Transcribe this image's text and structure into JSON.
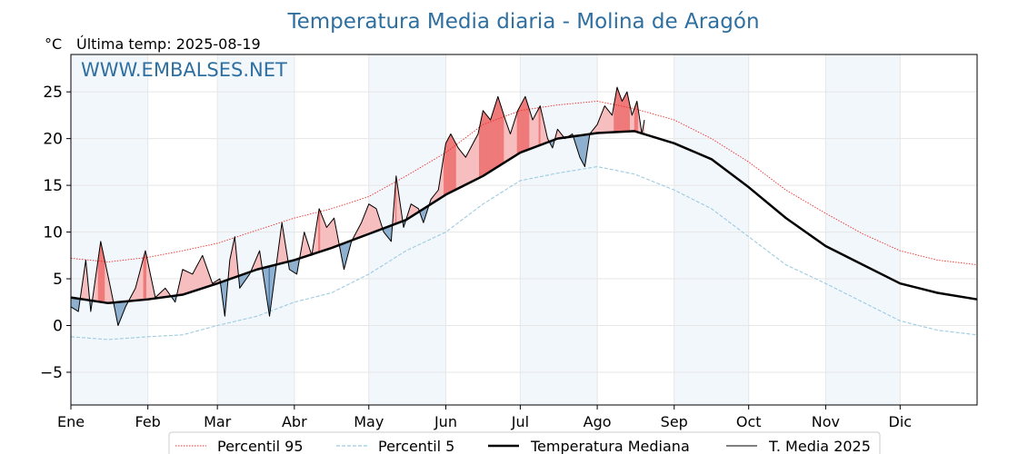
{
  "chart_data": {
    "type": "line",
    "title": "Temperatura Media diaria - Molina de Aragón",
    "unit_label": "°C",
    "last_temp_label": "Última temp: 2025-08-19",
    "watermark": "WWW.EMBALSES.NET",
    "ylim": [
      -8.5,
      29.0
    ],
    "yticks": [
      -5,
      0,
      5,
      10,
      15,
      20,
      25
    ],
    "ytick_labels": [
      "−5",
      "0",
      "5",
      "10",
      "15",
      "20",
      "25"
    ],
    "x_day_range": [
      0,
      365
    ],
    "months": [
      {
        "label": "Ene",
        "day": 0
      },
      {
        "label": "Feb",
        "day": 31
      },
      {
        "label": "Mar",
        "day": 59
      },
      {
        "label": "Abr",
        "day": 90
      },
      {
        "label": "May",
        "day": 120
      },
      {
        "label": "Jun",
        "day": 151
      },
      {
        "label": "Jul",
        "day": 181
      },
      {
        "label": "Ago",
        "day": 212
      },
      {
        "label": "Sep",
        "day": 243
      },
      {
        "label": "Oct",
        "day": 273
      },
      {
        "label": "Nov",
        "day": 304
      },
      {
        "label": "Dic",
        "day": 334
      }
    ],
    "grid": true,
    "legend_position": "bottom",
    "series": [
      {
        "name": "Percentil 95",
        "color": "#e8302a",
        "style": "dotted",
        "points": [
          [
            0,
            7.2
          ],
          [
            15,
            6.8
          ],
          [
            31,
            7.3
          ],
          [
            45,
            8.0
          ],
          [
            59,
            8.8
          ],
          [
            75,
            10.2
          ],
          [
            90,
            11.5
          ],
          [
            105,
            12.5
          ],
          [
            120,
            13.8
          ],
          [
            135,
            16.0
          ],
          [
            151,
            18.5
          ],
          [
            166,
            21.5
          ],
          [
            181,
            23.0
          ],
          [
            196,
            23.6
          ],
          [
            212,
            24.0
          ],
          [
            227,
            23.2
          ],
          [
            243,
            22.0
          ],
          [
            258,
            20.0
          ],
          [
            273,
            17.5
          ],
          [
            288,
            14.5
          ],
          [
            304,
            12.0
          ],
          [
            319,
            9.8
          ],
          [
            334,
            8.0
          ],
          [
            349,
            7.0
          ],
          [
            365,
            6.5
          ]
        ]
      },
      {
        "name": "Percentil 5",
        "color": "#9ccbe0",
        "style": "dashed",
        "points": [
          [
            0,
            -1.2
          ],
          [
            15,
            -1.5
          ],
          [
            31,
            -1.2
          ],
          [
            45,
            -1.0
          ],
          [
            59,
            0.0
          ],
          [
            75,
            1.0
          ],
          [
            90,
            2.5
          ],
          [
            105,
            3.5
          ],
          [
            120,
            5.5
          ],
          [
            135,
            8.0
          ],
          [
            151,
            10.0
          ],
          [
            166,
            13.0
          ],
          [
            181,
            15.5
          ],
          [
            196,
            16.3
          ],
          [
            212,
            17.0
          ],
          [
            227,
            16.2
          ],
          [
            243,
            14.5
          ],
          [
            258,
            12.5
          ],
          [
            273,
            9.5
          ],
          [
            288,
            6.5
          ],
          [
            304,
            4.5
          ],
          [
            319,
            2.5
          ],
          [
            334,
            0.5
          ],
          [
            349,
            -0.5
          ],
          [
            365,
            -1.0
          ]
        ]
      },
      {
        "name": "Temperatura Mediana",
        "color": "#000000",
        "style": "thick",
        "points": [
          [
            0,
            3.0
          ],
          [
            15,
            2.4
          ],
          [
            31,
            2.8
          ],
          [
            45,
            3.3
          ],
          [
            59,
            4.5
          ],
          [
            75,
            6.0
          ],
          [
            90,
            7.0
          ],
          [
            105,
            8.3
          ],
          [
            120,
            9.8
          ],
          [
            135,
            11.3
          ],
          [
            151,
            14.0
          ],
          [
            166,
            16.0
          ],
          [
            181,
            18.5
          ],
          [
            196,
            20.0
          ],
          [
            212,
            20.6
          ],
          [
            227,
            20.8
          ],
          [
            243,
            19.5
          ],
          [
            258,
            17.8
          ],
          [
            273,
            14.8
          ],
          [
            288,
            11.5
          ],
          [
            304,
            8.5
          ],
          [
            319,
            6.5
          ],
          [
            334,
            4.5
          ],
          [
            349,
            3.5
          ],
          [
            365,
            2.8
          ]
        ]
      },
      {
        "name": "T. Media 2025",
        "color": "#000000",
        "style": "thin",
        "points": [
          [
            0,
            2.0
          ],
          [
            3,
            1.5
          ],
          [
            6,
            7.0
          ],
          [
            8,
            1.5
          ],
          [
            12,
            9.0
          ],
          [
            16,
            4.0
          ],
          [
            19,
            0.0
          ],
          [
            22,
            2.0
          ],
          [
            26,
            4.0
          ],
          [
            30,
            8.0
          ],
          [
            34,
            3.0
          ],
          [
            38,
            4.0
          ],
          [
            42,
            2.5
          ],
          [
            45,
            6.0
          ],
          [
            49,
            5.5
          ],
          [
            53,
            7.5
          ],
          [
            57,
            4.5
          ],
          [
            60,
            5.0
          ],
          [
            62,
            1.0
          ],
          [
            64,
            7.0
          ],
          [
            66,
            9.5
          ],
          [
            68,
            4.0
          ],
          [
            72,
            5.5
          ],
          [
            76,
            8.0
          ],
          [
            80,
            1.0
          ],
          [
            82,
            5.0
          ],
          [
            85,
            11.0
          ],
          [
            88,
            6.0
          ],
          [
            91,
            5.5
          ],
          [
            94,
            10.0
          ],
          [
            97,
            7.5
          ],
          [
            100,
            12.5
          ],
          [
            103,
            10.5
          ],
          [
            106,
            11.5
          ],
          [
            110,
            6.0
          ],
          [
            113,
            9.0
          ],
          [
            117,
            11.0
          ],
          [
            120,
            13.0
          ],
          [
            123,
            12.5
          ],
          [
            126,
            10.0
          ],
          [
            129,
            9.0
          ],
          [
            131,
            16.0
          ],
          [
            134,
            10.5
          ],
          [
            137,
            13.0
          ],
          [
            140,
            12.5
          ],
          [
            142,
            11.0
          ],
          [
            145,
            13.5
          ],
          [
            148,
            14.5
          ],
          [
            151,
            19.5
          ],
          [
            153,
            20.5
          ],
          [
            156,
            19.0
          ],
          [
            159,
            18.0
          ],
          [
            162,
            19.5
          ],
          [
            164,
            20.5
          ],
          [
            166,
            23.0
          ],
          [
            169,
            22.0
          ],
          [
            172,
            24.5
          ],
          [
            175,
            22.0
          ],
          [
            177,
            20.5
          ],
          [
            180,
            23.0
          ],
          [
            183,
            24.5
          ],
          [
            186,
            22.0
          ],
          [
            189,
            23.5
          ],
          [
            192,
            20.0
          ],
          [
            194,
            19.0
          ],
          [
            196,
            21.0
          ],
          [
            199,
            20.0
          ],
          [
            202,
            20.5
          ],
          [
            205,
            18.0
          ],
          [
            207,
            17.0
          ],
          [
            209,
            20.5
          ],
          [
            212,
            21.5
          ],
          [
            215,
            23.5
          ],
          [
            218,
            22.5
          ],
          [
            220,
            25.5
          ],
          [
            222,
            24.0
          ],
          [
            224,
            25.0
          ],
          [
            226,
            22.5
          ],
          [
            228,
            24.0
          ],
          [
            230,
            20.5
          ],
          [
            231,
            22.0
          ]
        ]
      }
    ]
  }
}
